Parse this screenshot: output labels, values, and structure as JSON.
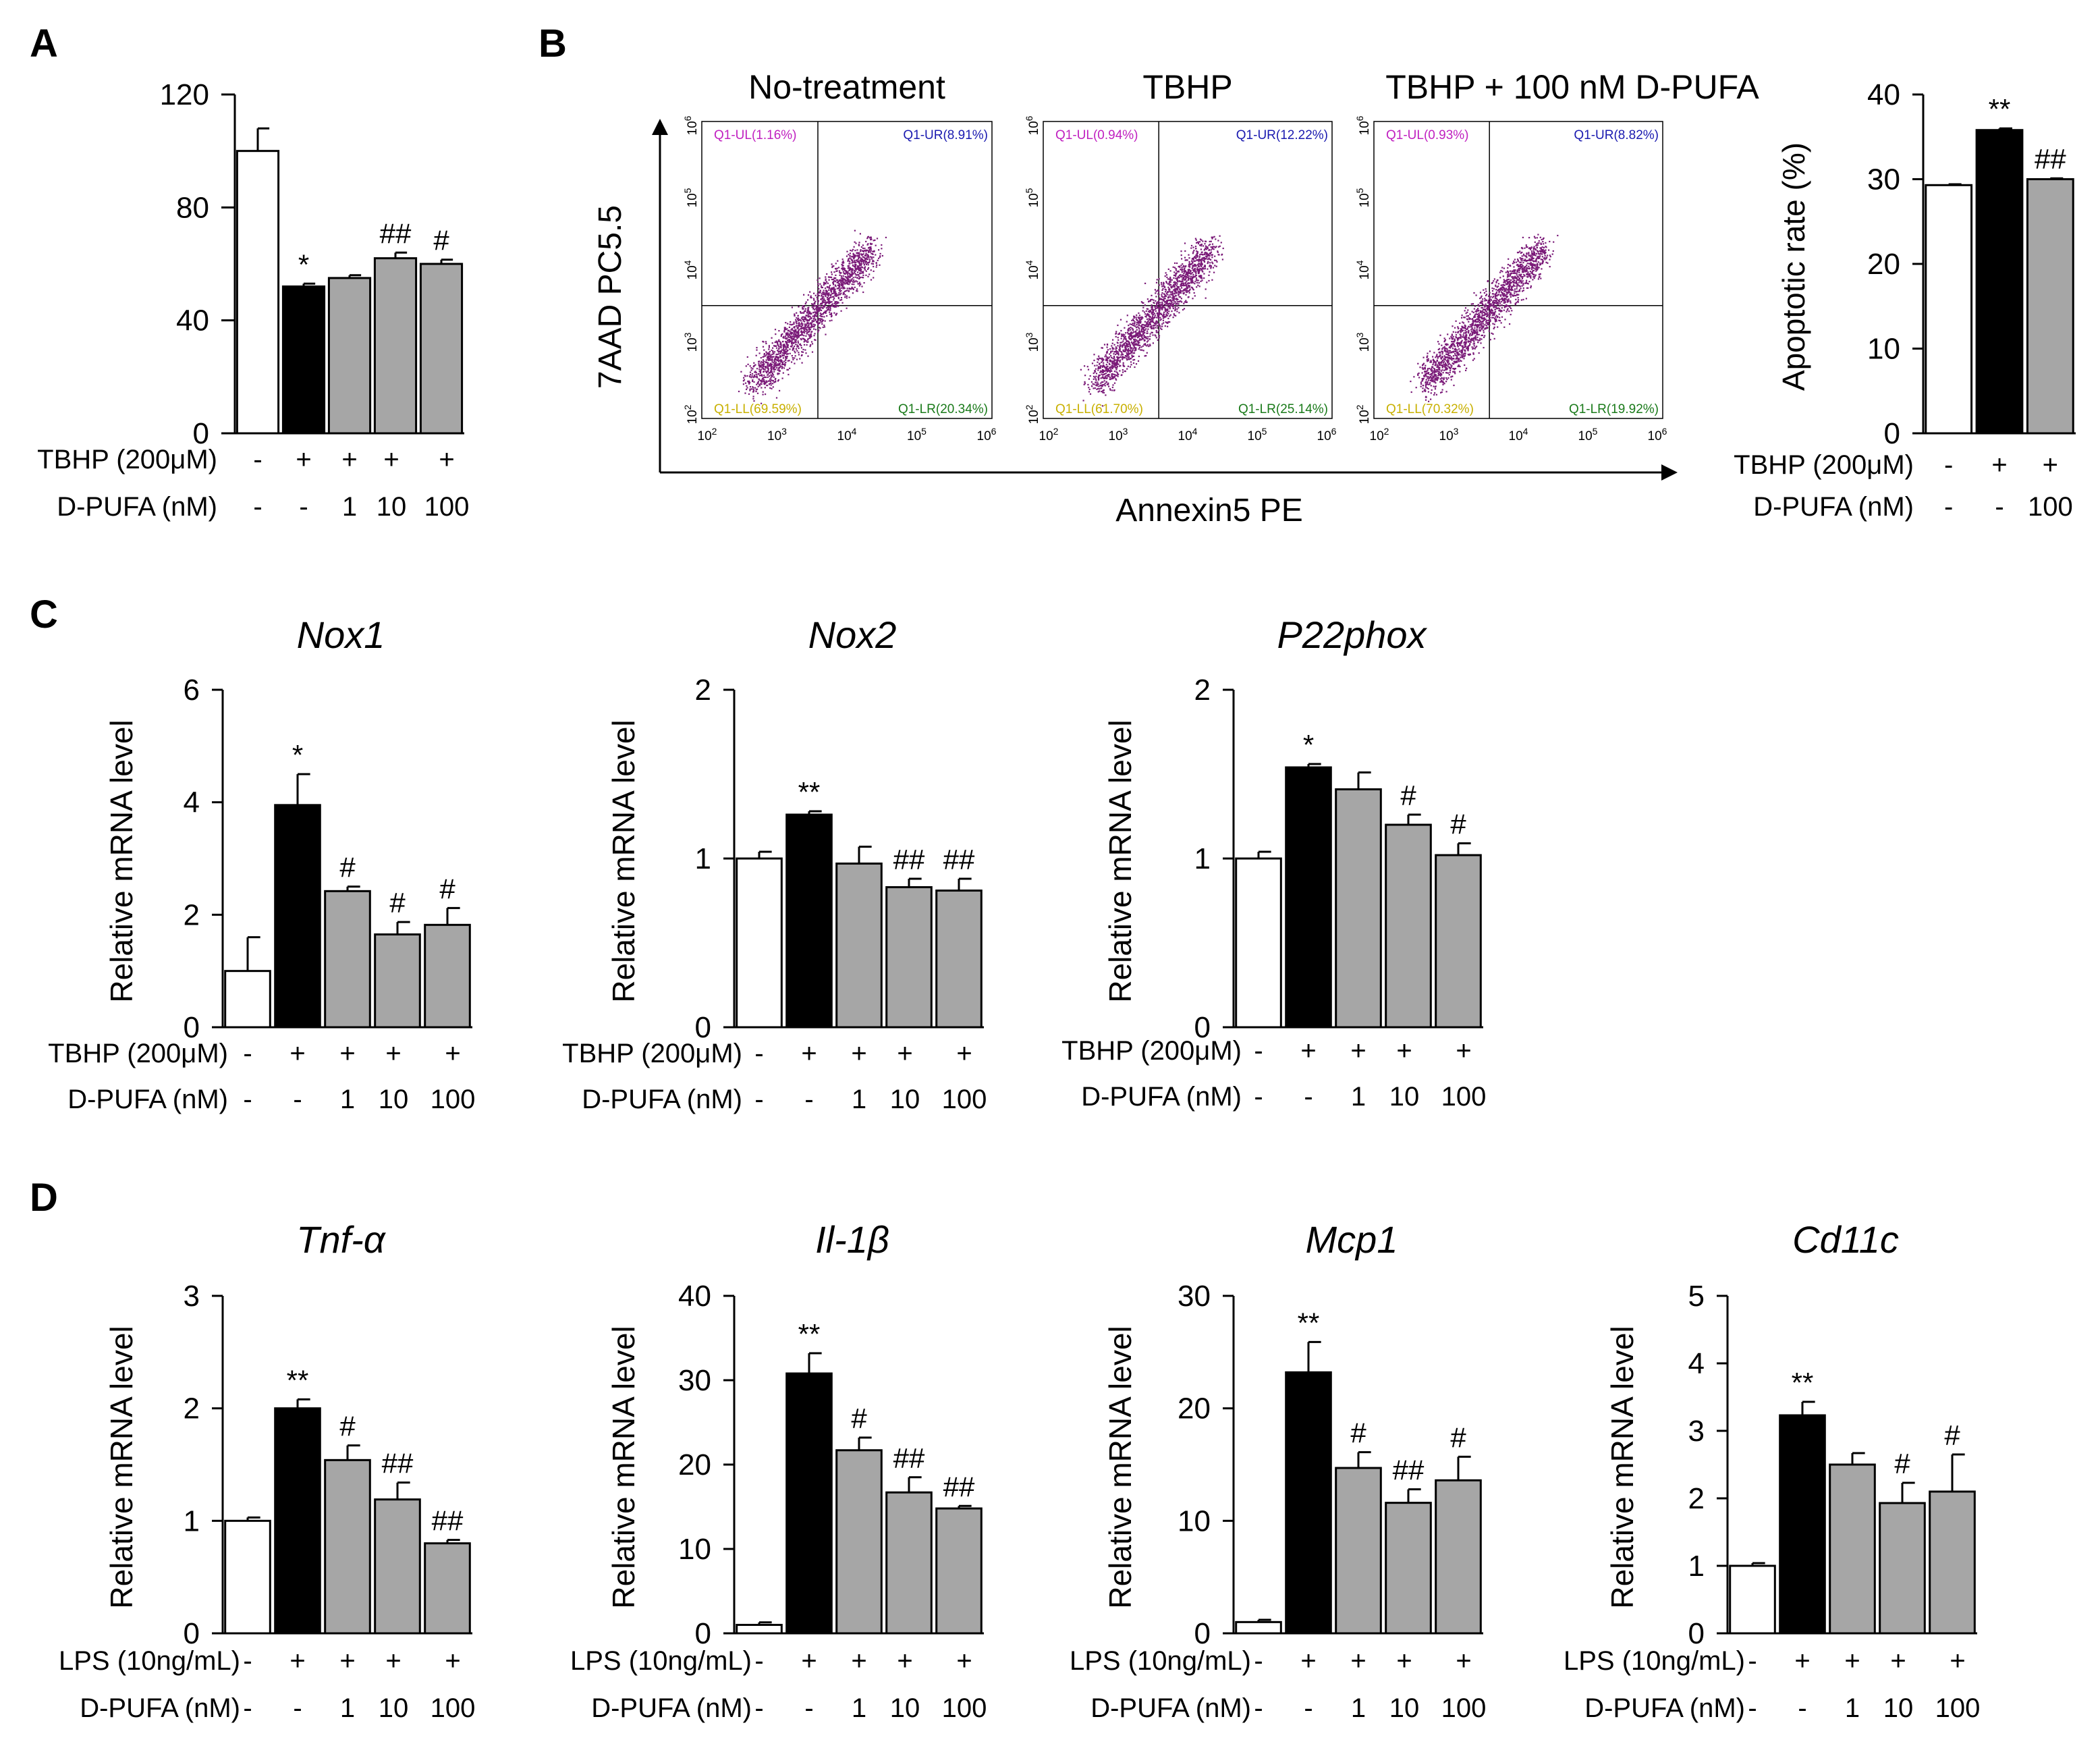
{
  "figure_labels": [
    "A",
    "B",
    "C",
    "D"
  ],
  "flow_panel": {
    "y_axis_label": "7AAD PC5.5",
    "x_axis_label": "Annexin5 PE",
    "tick_labels": [
      "10",
      "10",
      "10",
      "10",
      "10"
    ],
    "tick_exponents": [
      "2",
      "3",
      "4",
      "5",
      "6"
    ],
    "plots": [
      {
        "title": "No-treatment",
        "ul": "Q1-UL(1.16%)",
        "ur": "Q1-UR(8.91%)",
        "ll": "Q1-LL(69.59%)",
        "lr": "Q1-LR(20.34%)"
      },
      {
        "title": "TBHP",
        "ul": "Q1-UL(0.94%)",
        "ur": "Q1-UR(12.22%)",
        "ll": "Q1-LL(61.70%)",
        "lr": "Q1-LR(25.14%)"
      },
      {
        "title": "TBHP + 100 nM D-PUFA",
        "ul": "Q1-UL(0.93%)",
        "ur": "Q1-UR(8.82%)",
        "ll": "Q1-LL(70.32%)",
        "lr": "Q1-LR(19.92%)"
      }
    ]
  },
  "colors": {
    "control": "#ffffff",
    "treatment": "#000000",
    "dpufa": "#a6a6a6",
    "dots": "#7a1a78"
  },
  "chart_data": [
    {
      "id": "A",
      "type": "bar",
      "title": "",
      "ylabel": "",
      "ylim": [
        0,
        120
      ],
      "yticks": [
        0,
        40,
        80,
        120
      ],
      "categories": [
        "control",
        "TBHP",
        "TBHP+1",
        "TBHP+10",
        "TBHP+100"
      ],
      "values": [
        100,
        52,
        55,
        62,
        60
      ],
      "errors": [
        8,
        1,
        1,
        2,
        1.5
      ],
      "colors": [
        "control",
        "treatment",
        "dpufa",
        "dpufa",
        "dpufa"
      ],
      "annotations": [
        "",
        "*",
        "",
        "##",
        "#"
      ],
      "row_labels": [
        {
          "label": "TBHP (200μM)",
          "values": [
            "-",
            "+",
            "+",
            "+",
            "+"
          ]
        },
        {
          "label": "D-PUFA (nM)",
          "values": [
            "-",
            "-",
            "1",
            "10",
            "100"
          ]
        }
      ]
    },
    {
      "id": "B-right",
      "type": "bar",
      "title": "",
      "ylabel": "Apoptotic rate (%)",
      "ylim": [
        0,
        40
      ],
      "yticks": [
        0,
        10,
        20,
        30,
        40
      ],
      "categories": [
        "No-treatment",
        "TBHP",
        "TBHP + 100 nM D-PUFA"
      ],
      "values": [
        29.3,
        35.8,
        30.0
      ],
      "errors": [
        0.1,
        0.2,
        0.1
      ],
      "colors": [
        "control",
        "treatment",
        "dpufa"
      ],
      "annotations": [
        "",
        "**",
        "##"
      ],
      "row_labels": [
        {
          "label": "TBHP (200μM)",
          "values": [
            "-",
            "+",
            "+"
          ]
        },
        {
          "label": "D-PUFA (nM)",
          "values": [
            "-",
            "-",
            "100"
          ]
        }
      ]
    },
    {
      "id": "C-Nox1",
      "type": "bar",
      "title": "Nox1",
      "ylabel": "Relative mRNA  level",
      "ylim": [
        0,
        6
      ],
      "yticks": [
        0,
        2,
        4,
        6
      ],
      "categories": [
        "control",
        "TBHP",
        "TBHP+1",
        "TBHP+10",
        "TBHP+100"
      ],
      "values": [
        1.0,
        3.95,
        2.42,
        1.65,
        1.82
      ],
      "errors": [
        0.6,
        0.55,
        0.08,
        0.22,
        0.3
      ],
      "colors": [
        "control",
        "treatment",
        "dpufa",
        "dpufa",
        "dpufa"
      ],
      "annotations": [
        "",
        "*",
        "#",
        "#",
        "#"
      ],
      "row_labels": [
        {
          "label": "TBHP (200μM)",
          "values": [
            "-",
            "+",
            "+",
            "+",
            "+"
          ]
        },
        {
          "label": "D-PUFA (nM)",
          "values": [
            "-",
            "-",
            "1",
            "10",
            "100"
          ]
        }
      ]
    },
    {
      "id": "C-Nox2",
      "type": "bar",
      "title": "Nox2",
      "ylabel": "Relative mRNA  level",
      "ylim": [
        0,
        2
      ],
      "yticks": [
        0,
        1,
        2
      ],
      "categories": [
        "control",
        "TBHP",
        "TBHP+1",
        "TBHP+10",
        "TBHP+100"
      ],
      "values": [
        1.0,
        1.26,
        0.97,
        0.83,
        0.81
      ],
      "errors": [
        0.04,
        0.02,
        0.1,
        0.05,
        0.07
      ],
      "colors": [
        "control",
        "treatment",
        "dpufa",
        "dpufa",
        "dpufa"
      ],
      "annotations": [
        "",
        "**",
        "",
        "##",
        "##"
      ],
      "row_labels": [
        {
          "label": "TBHP (200μM)",
          "values": [
            "-",
            "+",
            "+",
            "+",
            "+"
          ]
        },
        {
          "label": "D-PUFA (nM)",
          "values": [
            "-",
            "-",
            "1",
            "10",
            "100"
          ]
        }
      ]
    },
    {
      "id": "C-P22phox",
      "type": "bar",
      "title": "P22phox",
      "ylabel": "Relative mRNA  level",
      "ylim": [
        0,
        2
      ],
      "yticks": [
        0,
        1,
        2
      ],
      "categories": [
        "control",
        "TBHP",
        "TBHP+1",
        "TBHP+10",
        "TBHP+100"
      ],
      "values": [
        1.0,
        1.54,
        1.41,
        1.2,
        1.02
      ],
      "errors": [
        0.04,
        0.02,
        0.1,
        0.06,
        0.07
      ],
      "colors": [
        "control",
        "treatment",
        "dpufa",
        "dpufa",
        "dpufa"
      ],
      "annotations": [
        "",
        "*",
        "",
        "#",
        "#"
      ],
      "row_labels": [
        {
          "label": "TBHP (200μM)",
          "values": [
            "-",
            "+",
            "+",
            "+",
            "+"
          ]
        },
        {
          "label": "D-PUFA (nM)",
          "values": [
            "-",
            "-",
            "1",
            "10",
            "100"
          ]
        }
      ]
    },
    {
      "id": "D-Tnf",
      "type": "bar",
      "title": "Tnf-α",
      "ylabel": "Relative mRNA  level",
      "ylim": [
        0,
        3
      ],
      "yticks": [
        0,
        1,
        2,
        3
      ],
      "categories": [
        "control",
        "LPS",
        "LPS+1",
        "LPS+10",
        "LPS+100"
      ],
      "values": [
        1.0,
        2.0,
        1.54,
        1.19,
        0.8
      ],
      "errors": [
        0.03,
        0.08,
        0.13,
        0.15,
        0.03
      ],
      "colors": [
        "control",
        "treatment",
        "dpufa",
        "dpufa",
        "dpufa"
      ],
      "annotations": [
        "",
        "**",
        "#",
        "##",
        "##"
      ],
      "row_labels": [
        {
          "label": "LPS (10ng/mL)",
          "values": [
            "-",
            "+",
            "+",
            "+",
            "+"
          ]
        },
        {
          "label": "D-PUFA (nM)",
          "values": [
            "-",
            "-",
            "1",
            "10",
            "100"
          ]
        }
      ]
    },
    {
      "id": "D-Il1b",
      "type": "bar",
      "title": "Il-1β",
      "ylabel": "Relative mRNA  level",
      "ylim": [
        0,
        40
      ],
      "yticks": [
        0,
        10,
        20,
        30,
        40
      ],
      "categories": [
        "control",
        "LPS",
        "LPS+1",
        "LPS+10",
        "LPS+100"
      ],
      "values": [
        1.0,
        30.8,
        21.7,
        16.7,
        14.8
      ],
      "errors": [
        0.3,
        2.4,
        1.5,
        1.8,
        0.3
      ],
      "colors": [
        "control",
        "treatment",
        "dpufa",
        "dpufa",
        "dpufa"
      ],
      "annotations": [
        "",
        "**",
        "#",
        "##",
        "##"
      ],
      "row_labels": [
        {
          "label": "LPS (10ng/mL)",
          "values": [
            "-",
            "+",
            "+",
            "+",
            "+"
          ]
        },
        {
          "label": "D-PUFA (nM)",
          "values": [
            "-",
            "-",
            "1",
            "10",
            "100"
          ]
        }
      ]
    },
    {
      "id": "D-Mcp1",
      "type": "bar",
      "title": "Mcp1",
      "ylabel": "Relative mRNA  level",
      "ylim": [
        0,
        30
      ],
      "yticks": [
        0,
        10,
        20,
        30
      ],
      "categories": [
        "control",
        "LPS",
        "LPS+1",
        "LPS+10",
        "LPS+100"
      ],
      "values": [
        1.0,
        23.2,
        14.7,
        11.6,
        13.6
      ],
      "errors": [
        0.2,
        2.7,
        1.4,
        1.2,
        2.1
      ],
      "colors": [
        "control",
        "treatment",
        "dpufa",
        "dpufa",
        "dpufa"
      ],
      "annotations": [
        "",
        "**",
        "#",
        "##",
        "#"
      ],
      "row_labels": [
        {
          "label": "LPS (10ng/mL)",
          "values": [
            "-",
            "+",
            "+",
            "+",
            "+"
          ]
        },
        {
          "label": "D-PUFA (nM)",
          "values": [
            "-",
            "-",
            "1",
            "10",
            "100"
          ]
        }
      ]
    },
    {
      "id": "D-Cd11c",
      "type": "bar",
      "title": "Cd11c",
      "ylabel": "Relative mRNA  level",
      "ylim": [
        0,
        5
      ],
      "yticks": [
        0,
        1,
        2,
        3,
        4,
        5
      ],
      "categories": [
        "control",
        "LPS",
        "LPS+1",
        "LPS+10",
        "LPS+100"
      ],
      "values": [
        1.0,
        3.23,
        2.5,
        1.93,
        2.1
      ],
      "errors": [
        0.04,
        0.2,
        0.17,
        0.3,
        0.55
      ],
      "colors": [
        "control",
        "treatment",
        "dpufa",
        "dpufa",
        "dpufa"
      ],
      "annotations": [
        "",
        "**",
        "",
        "#",
        "#"
      ],
      "row_labels": [
        {
          "label": "LPS (10ng/mL)",
          "values": [
            "-",
            "+",
            "+",
            "+",
            "+"
          ]
        },
        {
          "label": "D-PUFA (nM)",
          "values": [
            "-",
            "-",
            "1",
            "10",
            "100"
          ]
        }
      ]
    }
  ]
}
